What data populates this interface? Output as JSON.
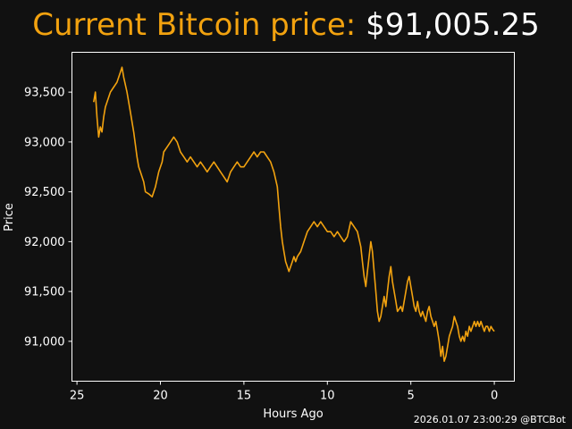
{
  "header": {
    "label": "Current Bitcoin price:",
    "price": "$91,005.25"
  },
  "footer": {
    "timestamp": "2026.01.07 23:00:29 @BTCBot"
  },
  "colors": {
    "background": "#111111",
    "line": "#f2a20f",
    "axes": "#ffffff",
    "text": "#ffffff"
  },
  "chart_data": {
    "type": "line",
    "title": "Current Bitcoin price: $91,005.25",
    "xlabel": "Hours Ago",
    "ylabel": "Price",
    "x_reversed": true,
    "xlim": [
      25.3,
      -1.2
    ],
    "ylim": [
      90600,
      93900
    ],
    "grid": false,
    "legend": "none",
    "xticks": [
      25,
      20,
      15,
      10,
      5,
      0
    ],
    "xtick_labels": [
      "25",
      "20",
      "15",
      "10",
      "5",
      "0"
    ],
    "yticks": [
      91000,
      91500,
      92000,
      92500,
      93000,
      93500
    ],
    "ytick_labels": [
      "91,000",
      "91,500",
      "92,000",
      "92,500",
      "93,000",
      "93,500"
    ],
    "series": [
      {
        "color": "#f2a20f",
        "points": [
          [
            24.0,
            93400
          ],
          [
            23.9,
            93500
          ],
          [
            23.8,
            93250
          ],
          [
            23.7,
            93050
          ],
          [
            23.6,
            93150
          ],
          [
            23.5,
            93100
          ],
          [
            23.4,
            93250
          ],
          [
            23.3,
            93350
          ],
          [
            23.1,
            93450
          ],
          [
            23.0,
            93500
          ],
          [
            22.8,
            93550
          ],
          [
            22.6,
            93600
          ],
          [
            22.4,
            93700
          ],
          [
            22.3,
            93750
          ],
          [
            22.2,
            93650
          ],
          [
            22.0,
            93500
          ],
          [
            21.8,
            93300
          ],
          [
            21.6,
            93100
          ],
          [
            21.4,
            92850
          ],
          [
            21.3,
            92750
          ],
          [
            21.2,
            92700
          ],
          [
            21.0,
            92600
          ],
          [
            20.9,
            92500
          ],
          [
            20.7,
            92480
          ],
          [
            20.5,
            92450
          ],
          [
            20.3,
            92550
          ],
          [
            20.1,
            92700
          ],
          [
            19.9,
            92800
          ],
          [
            19.8,
            92900
          ],
          [
            19.6,
            92950
          ],
          [
            19.4,
            93000
          ],
          [
            19.2,
            93050
          ],
          [
            19.0,
            93000
          ],
          [
            18.8,
            92900
          ],
          [
            18.6,
            92850
          ],
          [
            18.4,
            92800
          ],
          [
            18.2,
            92850
          ],
          [
            18.0,
            92800
          ],
          [
            17.8,
            92750
          ],
          [
            17.6,
            92800
          ],
          [
            17.4,
            92750
          ],
          [
            17.2,
            92700
          ],
          [
            17.0,
            92750
          ],
          [
            16.8,
            92800
          ],
          [
            16.6,
            92750
          ],
          [
            16.4,
            92700
          ],
          [
            16.2,
            92650
          ],
          [
            16.0,
            92600
          ],
          [
            15.8,
            92700
          ],
          [
            15.6,
            92750
          ],
          [
            15.4,
            92800
          ],
          [
            15.2,
            92750
          ],
          [
            15.0,
            92750
          ],
          [
            14.8,
            92800
          ],
          [
            14.6,
            92850
          ],
          [
            14.4,
            92900
          ],
          [
            14.2,
            92850
          ],
          [
            14.0,
            92900
          ],
          [
            13.8,
            92900
          ],
          [
            13.6,
            92850
          ],
          [
            13.4,
            92800
          ],
          [
            13.2,
            92700
          ],
          [
            13.0,
            92550
          ],
          [
            12.9,
            92350
          ],
          [
            12.8,
            92150
          ],
          [
            12.7,
            92000
          ],
          [
            12.6,
            91900
          ],
          [
            12.5,
            91800
          ],
          [
            12.4,
            91750
          ],
          [
            12.3,
            91700
          ],
          [
            12.2,
            91750
          ],
          [
            12.1,
            91800
          ],
          [
            12.0,
            91850
          ],
          [
            11.9,
            91800
          ],
          [
            11.8,
            91850
          ],
          [
            11.6,
            91900
          ],
          [
            11.4,
            92000
          ],
          [
            11.2,
            92100
          ],
          [
            11.0,
            92150
          ],
          [
            10.8,
            92200
          ],
          [
            10.6,
            92150
          ],
          [
            10.4,
            92200
          ],
          [
            10.2,
            92150
          ],
          [
            10.0,
            92100
          ],
          [
            9.8,
            92100
          ],
          [
            9.6,
            92050
          ],
          [
            9.4,
            92100
          ],
          [
            9.2,
            92050
          ],
          [
            9.0,
            92000
          ],
          [
            8.8,
            92050
          ],
          [
            8.6,
            92200
          ],
          [
            8.4,
            92150
          ],
          [
            8.2,
            92100
          ],
          [
            8.0,
            91950
          ],
          [
            7.9,
            91800
          ],
          [
            7.8,
            91650
          ],
          [
            7.7,
            91550
          ],
          [
            7.6,
            91700
          ],
          [
            7.5,
            91850
          ],
          [
            7.4,
            92000
          ],
          [
            7.3,
            91900
          ],
          [
            7.2,
            91700
          ],
          [
            7.1,
            91500
          ],
          [
            7.0,
            91300
          ],
          [
            6.9,
            91200
          ],
          [
            6.8,
            91250
          ],
          [
            6.7,
            91350
          ],
          [
            6.6,
            91450
          ],
          [
            6.5,
            91350
          ],
          [
            6.4,
            91500
          ],
          [
            6.3,
            91650
          ],
          [
            6.2,
            91750
          ],
          [
            6.1,
            91600
          ],
          [
            6.0,
            91500
          ],
          [
            5.9,
            91400
          ],
          [
            5.8,
            91300
          ],
          [
            5.6,
            91350
          ],
          [
            5.5,
            91300
          ],
          [
            5.4,
            91400
          ],
          [
            5.3,
            91500
          ],
          [
            5.2,
            91600
          ],
          [
            5.1,
            91650
          ],
          [
            5.0,
            91550
          ],
          [
            4.9,
            91450
          ],
          [
            4.8,
            91350
          ],
          [
            4.7,
            91300
          ],
          [
            4.6,
            91400
          ],
          [
            4.5,
            91300
          ],
          [
            4.4,
            91250
          ],
          [
            4.3,
            91300
          ],
          [
            4.2,
            91250
          ],
          [
            4.1,
            91200
          ],
          [
            4.0,
            91300
          ],
          [
            3.9,
            91350
          ],
          [
            3.8,
            91250
          ],
          [
            3.7,
            91200
          ],
          [
            3.6,
            91150
          ],
          [
            3.5,
            91200
          ],
          [
            3.4,
            91100
          ],
          [
            3.3,
            91000
          ],
          [
            3.2,
            90850
          ],
          [
            3.1,
            90950
          ],
          [
            3.0,
            90800
          ],
          [
            2.9,
            90850
          ],
          [
            2.8,
            90950
          ],
          [
            2.7,
            91050
          ],
          [
            2.6,
            91100
          ],
          [
            2.5,
            91150
          ],
          [
            2.4,
            91250
          ],
          [
            2.3,
            91200
          ],
          [
            2.2,
            91150
          ],
          [
            2.1,
            91050
          ],
          [
            2.0,
            91000
          ],
          [
            1.9,
            91050
          ],
          [
            1.8,
            91000
          ],
          [
            1.7,
            91100
          ],
          [
            1.6,
            91050
          ],
          [
            1.5,
            91150
          ],
          [
            1.4,
            91100
          ],
          [
            1.3,
            91150
          ],
          [
            1.2,
            91200
          ],
          [
            1.1,
            91150
          ],
          [
            1.0,
            91200
          ],
          [
            0.9,
            91150
          ],
          [
            0.8,
            91200
          ],
          [
            0.7,
            91150
          ],
          [
            0.6,
            91100
          ],
          [
            0.5,
            91150
          ],
          [
            0.4,
            91150
          ],
          [
            0.3,
            91100
          ],
          [
            0.2,
            91150
          ],
          [
            0.1,
            91120
          ],
          [
            0.0,
            91100
          ]
        ]
      }
    ]
  }
}
